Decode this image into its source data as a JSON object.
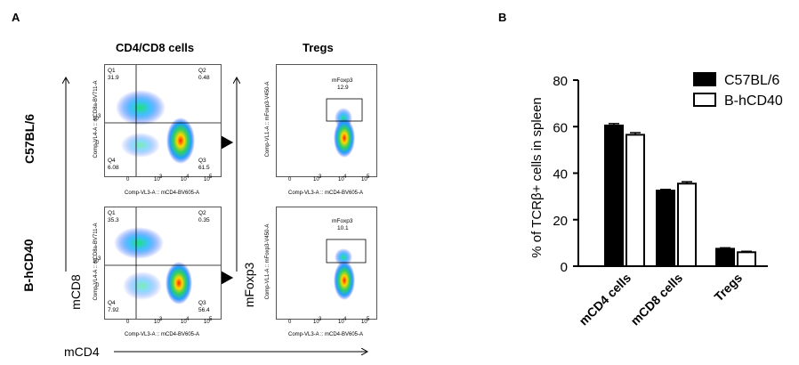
{
  "panel_a": {
    "letter": "A",
    "col_titles": [
      "CD4/CD8 cells",
      "Tregs"
    ],
    "row_labels": [
      "C57BL/6",
      "B-hCD40"
    ],
    "y_axis_label_left": "mCD8",
    "y_axis_label_right": "mFoxp3",
    "x_axis_label": "mCD4",
    "plots": {
      "cd4cd8_x_label": "Comp-VL3-A :: mCD4-BV605-A",
      "cd4cd8_y_label": "Comp-VL4-A :: mCD8a-BV711-A",
      "treg_x_label": "Comp-VL3-A :: mCD4-BV605-A",
      "treg_y_label": "Comp-VL1-A :: mFoxp3-V450-A",
      "x_ticks": [
        "0",
        "10",
        "3",
        "10",
        "4",
        "10",
        "5"
      ],
      "y_ticks": [
        "10",
        "3",
        "0"
      ],
      "c57": {
        "q1_label": "Q1",
        "q1": "31.9",
        "q2_label": "Q2",
        "q2": "0.48",
        "q3_label": "Q3",
        "q3": "61.5",
        "q4_label": "Q4",
        "q4": "6.08",
        "gate_name": "mFoxp3",
        "gate_value": "12.9"
      },
      "hcd40": {
        "q1_label": "Q1",
        "q1": "35.3",
        "q2_label": "Q2",
        "q2": "0.35",
        "q3_label": "Q3",
        "q3": "56.4",
        "q4_label": "Q4",
        "q4": "7.92",
        "gate_name": "mFoxp3",
        "gate_value": "10.1"
      }
    }
  },
  "panel_b": {
    "letter": "B",
    "colors": {
      "c57": "#000000",
      "hcd40": "#ffffff",
      "edge": "#000000"
    }
  },
  "chart_data": {
    "type": "bar",
    "categories": [
      "mCD4 cells",
      "mCD8 cells",
      "Tregs"
    ],
    "series": [
      {
        "name": "C57BL/6",
        "values": [
          60.5,
          32.5,
          7.5
        ],
        "errors": [
          0.8,
          0.5,
          0.4
        ]
      },
      {
        "name": "B-hCD40",
        "values": [
          56.5,
          35.5,
          6.0
        ],
        "errors": [
          0.9,
          0.8,
          0.4
        ]
      }
    ],
    "ylabel": "% of TCRβ+ cells in spleen",
    "ylim": [
      0,
      80
    ],
    "yticks": [
      0,
      20,
      40,
      60,
      80
    ],
    "legend_position": "top-right",
    "grid": false
  }
}
